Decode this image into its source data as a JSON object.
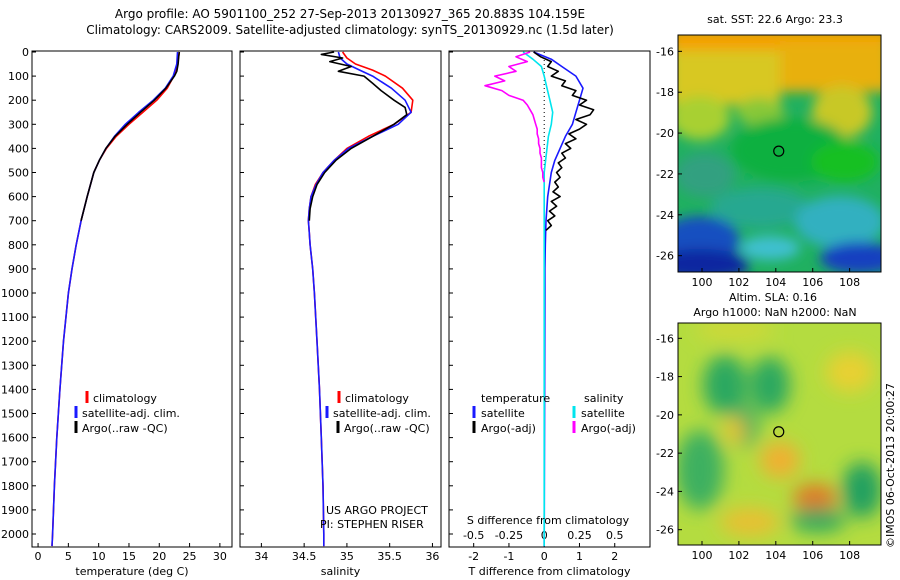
{
  "header": {
    "title_line1": "Argo profile: AO 5901100_252 27-Sep-2013 20130927_365 20.883S 104.159E",
    "title_line2": "Climatology: CARS2009. Satellite-adjusted climatology: synTS_20130929.nc (1.5d later)"
  },
  "colors": {
    "climatology": "#ff0000",
    "satellite": "#1a1aff",
    "argo": "#000000",
    "sal_satellite": "#00e5ee",
    "sal_argo": "#ff00ff"
  },
  "chart_data": [
    {
      "type": "line",
      "id": "temperature",
      "xlabel": "temperature (deg C)",
      "ylabel": "",
      "xlim": [
        -1,
        32
      ],
      "ylim": [
        2060,
        0
      ],
      "xticks": [
        "0",
        "5",
        "10",
        "15",
        "20",
        "25",
        "30"
      ],
      "yticks": [
        "0",
        "100",
        "200",
        "300",
        "400",
        "500",
        "600",
        "700",
        "800",
        "900",
        "1000",
        "1100",
        "1200",
        "1300",
        "1400",
        "1500",
        "1600",
        "1700",
        "1800",
        "1900",
        "2000"
      ],
      "legend": [
        "climatology",
        "satellite-adj. clim.",
        "Argo(..raw -QC)"
      ],
      "series": [
        {
          "name": "climatology",
          "color": "climatology",
          "depth": [
            0,
            50,
            100,
            150,
            200,
            250,
            300,
            350,
            400,
            450,
            500,
            600,
            700,
            800,
            900,
            1000,
            1200,
            1400,
            1600,
            1800,
            2000,
            2050
          ],
          "values": [
            23.3,
            23.0,
            22.4,
            21.3,
            19.6,
            17.3,
            15.0,
            12.9,
            11.3,
            10.1,
            9.2,
            8.1,
            7.1,
            6.3,
            5.6,
            5.0,
            4.2,
            3.6,
            3.1,
            2.7,
            2.4,
            2.3
          ]
        },
        {
          "name": "satellite-adj. clim.",
          "color": "satellite",
          "depth": [
            0,
            50,
            100,
            150,
            200,
            250,
            300,
            350,
            400,
            450,
            500,
            600,
            700,
            800,
            900,
            1000,
            1200,
            1400,
            1600,
            1800,
            2000,
            2050
          ],
          "values": [
            23.0,
            22.9,
            22.3,
            21.0,
            19.0,
            16.6,
            14.4,
            12.6,
            11.2,
            10.1,
            9.2,
            8.1,
            7.1,
            6.3,
            5.6,
            5.0,
            4.2,
            3.6,
            3.1,
            2.7,
            2.4,
            2.3
          ]
        },
        {
          "name": "Argo(..raw -QC)",
          "color": "argo",
          "depth": [
            0,
            20,
            50,
            80,
            100,
            150,
            200,
            250,
            300,
            350,
            400,
            450,
            500,
            600,
            700
          ],
          "values": [
            23.3,
            23.2,
            23.1,
            22.9,
            22.5,
            21.1,
            19.2,
            16.9,
            14.7,
            12.7,
            11.2,
            10.1,
            9.2,
            8.1,
            7.1
          ]
        }
      ]
    },
    {
      "type": "line",
      "id": "salinity",
      "xlabel": "salinity",
      "xlim": [
        33.75,
        36.1
      ],
      "ylim": [
        2060,
        0
      ],
      "xticks": [
        "34",
        "34.5",
        "35",
        "35.5",
        "36"
      ],
      "legend": [
        "climatology",
        "satellite-adj. clim.",
        "Argo(..raw -QC)"
      ],
      "annotation_line1": "US ARGO PROJECT",
      "annotation_line2": "PI: STEPHEN RISER",
      "series": [
        {
          "name": "climatology",
          "color": "climatology",
          "depth": [
            0,
            25,
            50,
            75,
            100,
            150,
            200,
            250,
            300,
            350,
            400,
            450,
            500,
            550,
            600,
            650,
            700,
            750,
            800,
            900,
            1000,
            1200,
            1400,
            1600,
            1800,
            2000,
            2050
          ],
          "values": [
            34.95,
            35.0,
            35.1,
            35.3,
            35.45,
            35.65,
            35.77,
            35.75,
            35.55,
            35.25,
            35.0,
            34.85,
            34.72,
            34.63,
            34.58,
            34.56,
            34.55,
            34.56,
            34.57,
            34.6,
            34.62,
            34.65,
            34.68,
            34.7,
            34.72,
            34.73,
            34.73
          ]
        },
        {
          "name": "satellite-adj. clim.",
          "color": "satellite",
          "depth": [
            0,
            25,
            50,
            75,
            100,
            150,
            200,
            250,
            300,
            350,
            400,
            450,
            500,
            550,
            600,
            650,
            700,
            750,
            800,
            900,
            1000,
            1200,
            1400,
            1600,
            1800,
            2000,
            2050
          ],
          "values": [
            34.9,
            34.92,
            35.0,
            35.15,
            35.3,
            35.52,
            35.68,
            35.75,
            35.6,
            35.3,
            35.02,
            34.85,
            34.72,
            34.64,
            34.58,
            34.56,
            34.55,
            34.56,
            34.57,
            34.6,
            34.62,
            34.65,
            34.68,
            34.7,
            34.72,
            34.73,
            34.73
          ]
        },
        {
          "name": "Argo(..raw -QC)",
          "color": "argo",
          "depth": [
            0,
            10,
            25,
            40,
            60,
            80,
            100,
            130,
            160,
            200,
            230,
            260,
            300,
            350,
            400,
            450,
            500,
            550,
            600,
            650,
            700
          ],
          "values": [
            34.85,
            34.7,
            34.95,
            34.8,
            35.05,
            34.9,
            35.2,
            35.3,
            35.4,
            35.55,
            35.68,
            35.7,
            35.55,
            35.3,
            35.05,
            34.87,
            34.74,
            34.65,
            34.6,
            34.57,
            34.56
          ]
        }
      ]
    },
    {
      "type": "line",
      "id": "difference",
      "xlabel": "T difference from climatology",
      "xlabel_top": "S difference from climatology",
      "xlim": [
        -2.7,
        3.0
      ],
      "ylim": [
        2060,
        0
      ],
      "xticks": [
        "-2",
        "-1",
        "0",
        "1",
        "2"
      ],
      "xticks_top": [
        "-0.5",
        "-0.25",
        "0",
        "0.25",
        "0.5"
      ],
      "legend_titles": [
        "temperature",
        "salinity"
      ],
      "legend": [
        "satellite",
        "Argo(-adj)",
        "satellite",
        "Argo(-adj)"
      ],
      "series": [
        {
          "name": "satellite",
          "quantity": "temperature",
          "color": "satellite",
          "depth": [
            0,
            30,
            60,
            100,
            150,
            200,
            250,
            300,
            350,
            400,
            450,
            500,
            600,
            700,
            800,
            900,
            1000,
            2050
          ],
          "values": [
            -0.3,
            0.2,
            0.5,
            0.9,
            1.1,
            1.0,
            0.9,
            0.8,
            0.6,
            0.45,
            0.3,
            0.2,
            0.1,
            0.05,
            0.03,
            0.02,
            0.02,
            0.0
          ]
        },
        {
          "name": "Argo(-adj)",
          "quantity": "temperature",
          "color": "argo",
          "depth": [
            0,
            20,
            40,
            60,
            80,
            100,
            120,
            140,
            160,
            180,
            200,
            220,
            240,
            260,
            280,
            300,
            320,
            340,
            360,
            380,
            400,
            420,
            440,
            460,
            480,
            500,
            520,
            540,
            560,
            580,
            600,
            620,
            640,
            660,
            680,
            700,
            720,
            740
          ],
          "values": [
            -0.3,
            -0.1,
            0.2,
            0.1,
            0.4,
            0.2,
            0.6,
            0.5,
            0.9,
            0.8,
            1.2,
            1.0,
            1.4,
            1.3,
            0.9,
            1.2,
            1.0,
            0.7,
            0.9,
            0.6,
            0.75,
            0.5,
            0.6,
            0.4,
            0.5,
            0.35,
            0.45,
            0.3,
            0.4,
            0.25,
            0.45,
            0.2,
            0.35,
            0.15,
            0.3,
            0.1,
            0.2,
            0.05
          ]
        },
        {
          "name": "satellite",
          "quantity": "salinity",
          "color": "sal_satellite",
          "depth": [
            0,
            30,
            60,
            100,
            150,
            200,
            250,
            300,
            350,
            400,
            450,
            500,
            600,
            700,
            800,
            1000,
            2050
          ],
          "values": [
            -0.15,
            -0.08,
            -0.02,
            0.0,
            0.02,
            0.04,
            0.06,
            0.05,
            0.03,
            0.02,
            0.01,
            0.0,
            0.0,
            0.0,
            0.0,
            0.0,
            0.0
          ]
        },
        {
          "name": "Argo(-adj)",
          "quantity": "salinity",
          "color": "sal_argo",
          "depth": [
            0,
            20,
            40,
            60,
            80,
            100,
            120,
            140,
            160,
            180,
            200,
            220,
            240,
            260,
            280,
            300,
            320,
            340,
            360,
            380,
            400,
            420,
            440,
            460,
            480,
            500,
            520,
            540
          ],
          "values": [
            -0.1,
            -0.2,
            -0.12,
            -0.25,
            -0.2,
            -0.35,
            -0.28,
            -0.42,
            -0.3,
            -0.25,
            -0.15,
            -0.12,
            -0.1,
            -0.08,
            -0.07,
            -0.06,
            -0.05,
            -0.05,
            -0.04,
            -0.04,
            -0.03,
            -0.03,
            -0.02,
            -0.02,
            -0.02,
            -0.01,
            -0.01,
            0.0
          ]
        }
      ]
    },
    {
      "type": "heatmap",
      "id": "sst_map",
      "title": "sat. SST: 22.6  Argo: 23.3",
      "xlim": [
        98.7,
        109.7
      ],
      "ylim": [
        -26.8,
        -15.2
      ],
      "xticks": [
        "100",
        "102",
        "104",
        "106",
        "108"
      ],
      "yticks": [
        "-16",
        "-18",
        "-20",
        "-22",
        "-24",
        "-26"
      ],
      "marker": {
        "lon": 104.159,
        "lat": -20.883
      }
    },
    {
      "type": "heatmap",
      "id": "sla_map",
      "title_line1": "Altim. SLA: 0.16",
      "title_line2": "Argo h1000: NaN h2000: NaN",
      "xlim": [
        98.7,
        109.7
      ],
      "ylim": [
        -26.8,
        -15.2
      ],
      "xticks": [
        "100",
        "102",
        "104",
        "106",
        "108"
      ],
      "yticks": [
        "-16",
        "-18",
        "-20",
        "-22",
        "-24",
        "-26"
      ],
      "marker": {
        "lon": 104.159,
        "lat": -20.883
      }
    }
  ],
  "footer": {
    "credit": "©IMOS 06-Oct-2013 20:00:27"
  }
}
